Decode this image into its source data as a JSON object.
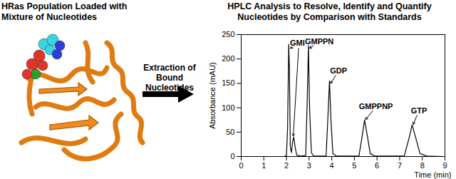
{
  "diagram": {
    "label": "HRas Population Loaded with\nMixture of Nucleotides",
    "arrow_label": "Extraction of\nBound Nucleotides"
  },
  "chart_data": {
    "type": "line",
    "title": "HPLC Analysis to Resolve, Identify and Quantify\nNucleotides by Comparison with Standards",
    "x_label": "Time (min)",
    "y_label": "Absorbance (mAU)",
    "x": [
      0,
      1.9,
      2.0,
      2.05,
      2.1,
      2.13,
      2.17,
      2.22,
      2.27,
      2.32,
      2.38,
      2.45,
      2.6,
      2.85,
      2.92,
      2.97,
      3.02,
      3.1,
      3.2,
      3.75,
      3.83,
      3.9,
      3.97,
      4.05,
      4.2,
      5.2,
      5.32,
      5.45,
      5.58,
      5.7,
      5.9,
      7.2,
      7.4,
      7.55,
      7.7,
      7.9,
      8.2,
      9
    ],
    "values": [
      0,
      0,
      2,
      60,
      230,
      180,
      20,
      8,
      30,
      40,
      20,
      3,
      1,
      2,
      120,
      228,
      100,
      8,
      1,
      1,
      80,
      155,
      70,
      6,
      1,
      1,
      35,
      75,
      40,
      6,
      1,
      1,
      35,
      65,
      40,
      6,
      1,
      0
    ],
    "color": "#000000",
    "xlim": [
      0,
      9
    ],
    "ylim": [
      0,
      250
    ],
    "xticks": [
      0,
      1,
      2,
      3,
      4,
      5,
      6,
      7,
      8,
      9
    ],
    "yticks": [
      0,
      50,
      100,
      150,
      200,
      250
    ],
    "grid": false,
    "annotations": [
      {
        "text": "GMP",
        "x": 2.55,
        "y": 232,
        "targets": [
          [
            2.17,
            222
          ],
          [
            2.3,
            42
          ]
        ]
      },
      {
        "text": "GMPPN",
        "x": 3.45,
        "y": 236,
        "targets": [
          [
            3.02,
            222
          ]
        ]
      },
      {
        "text": "GDP",
        "x": 4.3,
        "y": 175,
        "targets": [
          [
            3.95,
            150
          ]
        ]
      },
      {
        "text": "GMPPNP",
        "x": 5.95,
        "y": 102,
        "targets": [
          [
            5.5,
            76
          ]
        ]
      },
      {
        "text": "GTP",
        "x": 7.85,
        "y": 94,
        "targets": [
          [
            7.6,
            66
          ]
        ]
      }
    ]
  }
}
